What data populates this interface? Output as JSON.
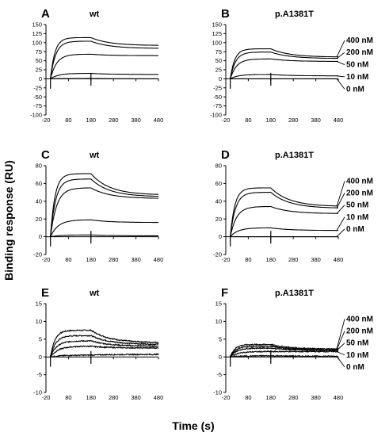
{
  "figure": {
    "ylabel": "Binding response (RU)",
    "xlabel": "Time (s)"
  },
  "chart_data": [
    {
      "type": "line",
      "panel": "A",
      "title": "wt",
      "ylim": [
        -100,
        150
      ],
      "yticks": [
        -100,
        -75,
        -50,
        -25,
        0,
        25,
        50,
        75,
        100,
        125,
        150
      ],
      "xlim": [
        -20,
        480
      ],
      "xticks": [
        -20,
        80,
        180,
        280,
        380,
        480
      ],
      "injection_end": 180,
      "series": [
        {
          "peak": 114,
          "end": 92
        },
        {
          "peak": 104,
          "end": 84
        },
        {
          "peak": 68,
          "end": 64
        },
        {
          "peak": 15,
          "end": 12
        },
        {
          "peak": 1,
          "end": 0
        }
      ],
      "concentrations": []
    },
    {
      "type": "line",
      "panel": "B",
      "title": "p.A1381T",
      "ylim": [
        -100,
        150
      ],
      "yticks": [
        -100,
        -75,
        -50,
        -25,
        0,
        25,
        50,
        75,
        100,
        125,
        150
      ],
      "xlim": [
        -20,
        480
      ],
      "xticks": [
        -20,
        80,
        180,
        280,
        380,
        480
      ],
      "injection_end": 180,
      "series": [
        {
          "name": "400 nM",
          "peak": 83,
          "end": 60
        },
        {
          "name": "200 nM",
          "peak": 74,
          "end": 56
        },
        {
          "name": "50 nM",
          "peak": 55,
          "end": 48
        },
        {
          "name": "10 nM",
          "peak": 12,
          "end": 8
        },
        {
          "name": "0 nM",
          "peak": 0,
          "end": 0
        }
      ],
      "concentrations": [
        "400 nM",
        "200 nM",
        "50 nM",
        "10 nM",
        "0 nM"
      ]
    },
    {
      "type": "line",
      "panel": "C",
      "title": "wt",
      "ylim": [
        -20,
        80
      ],
      "yticks": [
        -20,
        0,
        20,
        40,
        60,
        80
      ],
      "xlim": [
        -20,
        480
      ],
      "xticks": [
        -20,
        80,
        180,
        280,
        380,
        480
      ],
      "injection_end": 180,
      "series": [
        {
          "peak": 71,
          "end": 47
        },
        {
          "peak": 65,
          "end": 45
        },
        {
          "peak": 55,
          "end": 43
        },
        {
          "peak": 19,
          "end": 16
        },
        {
          "peak": 2,
          "end": 1
        }
      ],
      "concentrations": []
    },
    {
      "type": "line",
      "panel": "D",
      "title": "p.A1381T",
      "ylim": [
        -20,
        80
      ],
      "yticks": [
        -20,
        0,
        20,
        40,
        60,
        80
      ],
      "xlim": [
        -20,
        480
      ],
      "xticks": [
        -20,
        80,
        180,
        280,
        380,
        480
      ],
      "injection_end": 180,
      "series": [
        {
          "name": "400 nM",
          "peak": 55,
          "end": 34
        },
        {
          "name": "200 nM",
          "peak": 50,
          "end": 32
        },
        {
          "name": "50 nM",
          "peak": 34,
          "end": 26
        },
        {
          "name": "10 nM",
          "peak": 10,
          "end": 7
        },
        {
          "name": "0 nM",
          "peak": 0,
          "end": 0
        }
      ],
      "concentrations": [
        "400 nM",
        "200 nM",
        "50 nM",
        "10 nM",
        "0 nM"
      ]
    },
    {
      "type": "line",
      "panel": "E",
      "title": "wt",
      "ylim": [
        -10,
        15
      ],
      "yticks": [
        -10,
        -5,
        0,
        5,
        10,
        15
      ],
      "xlim": [
        -20,
        480
      ],
      "xticks": [
        -20,
        80,
        180,
        280,
        380,
        480
      ],
      "injection_end": 180,
      "series": [
        {
          "peak": 7.5,
          "end": 4
        },
        {
          "peak": 6,
          "end": 3.5
        },
        {
          "peak": 4.5,
          "end": 3
        },
        {
          "peak": 3,
          "end": 2.5
        },
        {
          "peak": 0.5,
          "end": 0.7
        }
      ],
      "concentrations": []
    },
    {
      "type": "line",
      "panel": "F",
      "title": "p.A1381T",
      "ylim": [
        -10,
        15
      ],
      "yticks": [
        -10,
        -5,
        0,
        5,
        10,
        15
      ],
      "xlim": [
        -20,
        480
      ],
      "xticks": [
        -20,
        80,
        180,
        280,
        380,
        480
      ],
      "injection_end": 180,
      "series": [
        {
          "name": "400 nM",
          "peak": 3.5,
          "end": 2.2
        },
        {
          "name": "200 nM",
          "peak": 3,
          "end": 2
        },
        {
          "name": "50 nM",
          "peak": 2.5,
          "end": 1.8
        },
        {
          "name": "10 nM",
          "peak": 1.5,
          "end": 1.5
        },
        {
          "name": "0 nM",
          "peak": 0.3,
          "end": 0.2
        }
      ],
      "concentrations": [
        "400 nM",
        "200 nM",
        "50 nM",
        "10 nM",
        "0 nM"
      ]
    }
  ]
}
